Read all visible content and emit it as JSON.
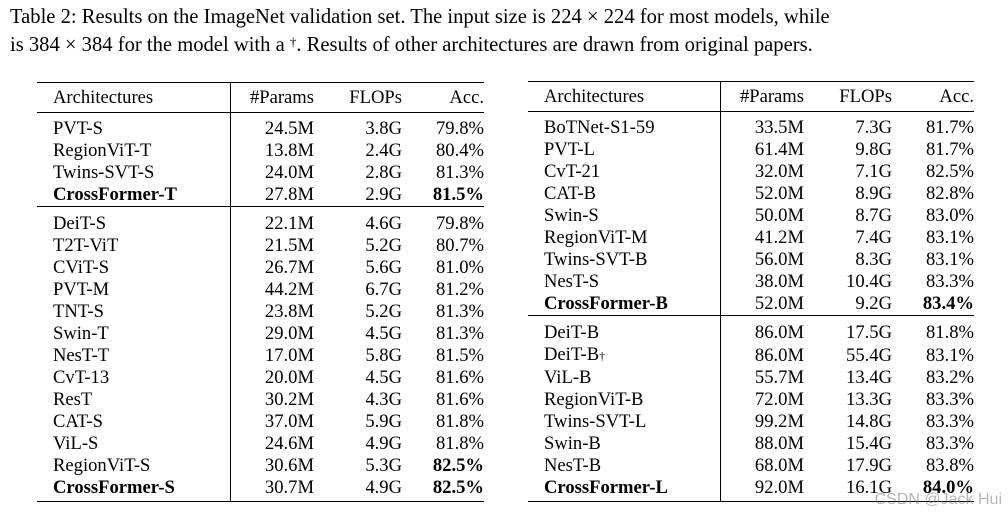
{
  "caption": {
    "line1": "Table 2: Results on the ImageNet validation set. The input size is 224 × 224 for most models, while",
    "line2": "is 384 × 384 for the model with a",
    "dagger": "†",
    "line2_end": ". Results of other architectures are drawn from original papers."
  },
  "headers": {
    "arch": "Architectures",
    "params": "#Params",
    "flops": "FLOPs",
    "acc": "Acc."
  },
  "left_group1": [
    {
      "arch": "PVT-S",
      "params": "24.5M",
      "flops": "3.8G",
      "acc": "79.8%"
    },
    {
      "arch": "RegionViT-T",
      "params": "13.8M",
      "flops": "2.4G",
      "acc": "80.4%"
    },
    {
      "arch": "Twins-SVT-S",
      "params": "24.0M",
      "flops": "2.8G",
      "acc": "81.3%"
    },
    {
      "arch": "CrossFormer-T",
      "params": "27.8M",
      "flops": "2.9G",
      "acc": "81.5%"
    }
  ],
  "left_group2": [
    {
      "arch": "DeiT-S",
      "params": "22.1M",
      "flops": "4.6G",
      "acc": "79.8%"
    },
    {
      "arch": "T2T-ViT",
      "params": "21.5M",
      "flops": "5.2G",
      "acc": "80.7%"
    },
    {
      "arch": "CViT-S",
      "params": "26.7M",
      "flops": "5.6G",
      "acc": "81.0%"
    },
    {
      "arch": "PVT-M",
      "params": "44.2M",
      "flops": "6.7G",
      "acc": "81.2%"
    },
    {
      "arch": "TNT-S",
      "params": "23.8M",
      "flops": "5.2G",
      "acc": "81.3%"
    },
    {
      "arch": "Swin-T",
      "params": "29.0M",
      "flops": "4.5G",
      "acc": "81.3%"
    },
    {
      "arch": "NesT-T",
      "params": "17.0M",
      "flops": "5.8G",
      "acc": "81.5%"
    },
    {
      "arch": "CvT-13",
      "params": "20.0M",
      "flops": "4.5G",
      "acc": "81.6%"
    },
    {
      "arch": "ResT",
      "params": "30.2M",
      "flops": "4.3G",
      "acc": "81.6%"
    },
    {
      "arch": "CAT-S",
      "params": "37.0M",
      "flops": "5.9G",
      "acc": "81.8%"
    },
    {
      "arch": "ViL-S",
      "params": "24.6M",
      "flops": "4.9G",
      "acc": "81.8%"
    },
    {
      "arch": "RegionViT-S",
      "params": "30.6M",
      "flops": "5.3G",
      "acc": "82.5%"
    },
    {
      "arch": "CrossFormer-S",
      "params": "30.7M",
      "flops": "4.9G",
      "acc": "82.5%"
    }
  ],
  "right_group1": [
    {
      "arch": "BoTNet-S1-59",
      "params": "33.5M",
      "flops": "7.3G",
      "acc": "81.7%"
    },
    {
      "arch": "PVT-L",
      "params": "61.4M",
      "flops": "9.8G",
      "acc": "81.7%"
    },
    {
      "arch": "CvT-21",
      "params": "32.0M",
      "flops": "7.1G",
      "acc": "82.5%"
    },
    {
      "arch": "CAT-B",
      "params": "52.0M",
      "flops": "8.9G",
      "acc": "82.8%"
    },
    {
      "arch": "Swin-S",
      "params": "50.0M",
      "flops": "8.7G",
      "acc": "83.0%"
    },
    {
      "arch": "RegionViT-M",
      "params": "41.2M",
      "flops": "7.4G",
      "acc": "83.1%"
    },
    {
      "arch": "Twins-SVT-B",
      "params": "56.0M",
      "flops": "8.3G",
      "acc": "83.1%"
    },
    {
      "arch": "NesT-S",
      "params": "38.0M",
      "flops": "10.4G",
      "acc": "83.3%"
    },
    {
      "arch": "CrossFormer-B",
      "params": "52.0M",
      "flops": "9.2G",
      "acc": "83.4%"
    }
  ],
  "right_group2": [
    {
      "arch": "DeiT-B",
      "params": "86.0M",
      "flops": "17.5G",
      "acc": "81.8%"
    },
    {
      "arch": "DeiT-B",
      "params": "86.0M",
      "flops": "55.4G",
      "acc": "83.1%"
    },
    {
      "arch": "ViL-B",
      "params": "55.7M",
      "flops": "13.4G",
      "acc": "83.2%"
    },
    {
      "arch": "RegionViT-B",
      "params": "72.0M",
      "flops": "13.3G",
      "acc": "83.3%"
    },
    {
      "arch": "Twins-SVT-L",
      "params": "99.2M",
      "flops": "14.8G",
      "acc": "83.3%"
    },
    {
      "arch": "Swin-B",
      "params": "88.0M",
      "flops": "15.4G",
      "acc": "83.3%"
    },
    {
      "arch": "NesT-B",
      "params": "68.0M",
      "flops": "17.9G",
      "acc": "83.8%"
    },
    {
      "arch": "CrossFormer-L",
      "params": "92.0M",
      "flops": "16.1G",
      "acc": "84.0%"
    }
  ],
  "watermark": "CSDN @Jack Hui"
}
